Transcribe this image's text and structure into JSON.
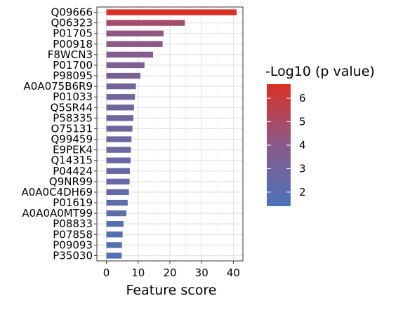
{
  "chart_data": {
    "type": "bar",
    "orientation": "horizontal",
    "xlabel": "Feature score",
    "ylabel": "",
    "xlim": [
      -3,
      43
    ],
    "xticks": [
      0,
      10,
      20,
      30,
      40
    ],
    "grid": true,
    "legend_position": "right",
    "color_scale": {
      "label": "-Log10 (p value)",
      "min": 1.4,
      "max": 6.6,
      "ticks": [
        2,
        3,
        4,
        5,
        6
      ],
      "low_color": "#4a74b8",
      "high_color": "#d93025"
    },
    "categories": [
      "Q09666",
      "Q06323",
      "P01705",
      "P00918",
      "F8WCN3",
      "P01700",
      "P98095",
      "A0A075B6R9",
      "P01033",
      "Q5SR44",
      "P58335",
      "O75131",
      "Q99459",
      "E9PEK4",
      "Q14315",
      "P04424",
      "Q9NR99",
      "A0A0C4DH69",
      "P01619",
      "A0A0A0MT99",
      "P08833",
      "P07858",
      "P09093",
      "P35030"
    ],
    "values": [
      41.0,
      24.7,
      18.0,
      17.7,
      14.7,
      12.0,
      10.7,
      9.3,
      9.0,
      8.7,
      8.5,
      8.2,
      7.9,
      7.7,
      7.6,
      7.4,
      7.3,
      7.1,
      6.7,
      6.3,
      5.4,
      5.1,
      4.9,
      4.8
    ],
    "neglog10_p": [
      6.6,
      4.9,
      4.2,
      4.1,
      3.8,
      3.5,
      3.3,
      3.1,
      3.0,
      2.9,
      2.85,
      2.8,
      2.75,
      2.7,
      2.6,
      2.55,
      2.5,
      2.45,
      2.3,
      2.2,
      1.9,
      1.8,
      1.75,
      1.7
    ]
  }
}
